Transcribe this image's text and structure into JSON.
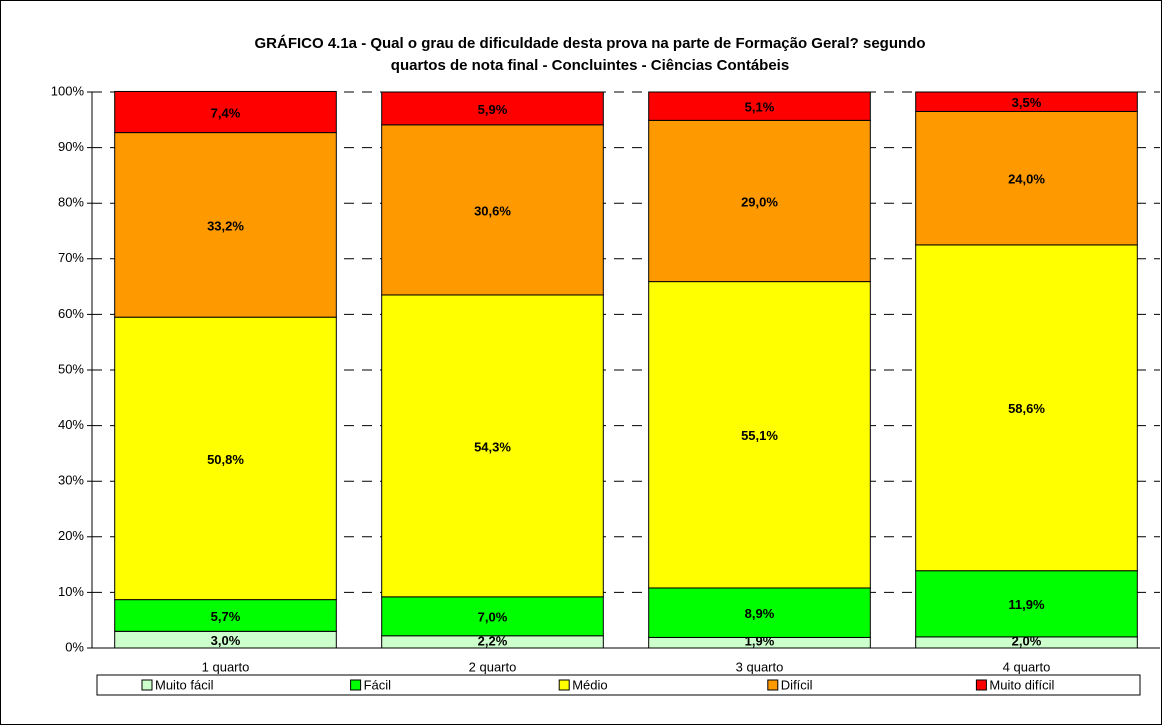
{
  "chart_data": {
    "type": "stacked_bar",
    "title": [
      "GRÁFICO 4.1a - Qual o grau de dificuldade desta prova na parte de Formação Geral? segundo",
      "quartos de nota final  - Concluintes - Ciências Contábeis"
    ],
    "categories": [
      "1 quarto",
      "2 quarto",
      "3 quarto",
      "4 quarto"
    ],
    "series": [
      {
        "name": "Muito fácil",
        "color": "#ccffcc",
        "values": [
          3.0,
          2.2,
          1.9,
          2.0
        ],
        "value_labels": [
          "3,0%",
          "2,2%",
          "1,9%",
          "2,0%"
        ]
      },
      {
        "name": "Fácil",
        "color": "#00ff00",
        "values": [
          5.7,
          7.0,
          8.9,
          11.9
        ],
        "value_labels": [
          "5,7%",
          "7,0%",
          "8,9%",
          "11,9%"
        ]
      },
      {
        "name": "Médio",
        "color": "#ffff00",
        "values": [
          50.8,
          54.3,
          55.1,
          58.6
        ],
        "value_labels": [
          "50,8%",
          "54,3%",
          "55,1%",
          "58,6%"
        ]
      },
      {
        "name": "Difícil",
        "color": "#ff9900",
        "values": [
          33.2,
          30.6,
          29.0,
          24.0
        ],
        "value_labels": [
          "33,2%",
          "30,6%",
          "29,0%",
          "24,0%"
        ]
      },
      {
        "name": "Muito difícil",
        "color": "#ff0000",
        "values": [
          7.4,
          5.9,
          5.1,
          3.5
        ],
        "value_labels": [
          "7,4%",
          "5,9%",
          "5,1%",
          "3,5%"
        ]
      }
    ],
    "ylim": [
      0,
      100
    ],
    "yticks": [
      {
        "value": 0,
        "label": "0%"
      },
      {
        "value": 10,
        "label": "10%"
      },
      {
        "value": 20,
        "label": "20%"
      },
      {
        "value": 30,
        "label": "30%"
      },
      {
        "value": 40,
        "label": "40%"
      },
      {
        "value": 50,
        "label": "50%"
      },
      {
        "value": 60,
        "label": "60%"
      },
      {
        "value": 70,
        "label": "70%"
      },
      {
        "value": 80,
        "label": "80%"
      },
      {
        "value": 90,
        "label": "90%"
      },
      {
        "value": 100,
        "label": "100%"
      }
    ],
    "grid": true,
    "legend": "bottom"
  }
}
